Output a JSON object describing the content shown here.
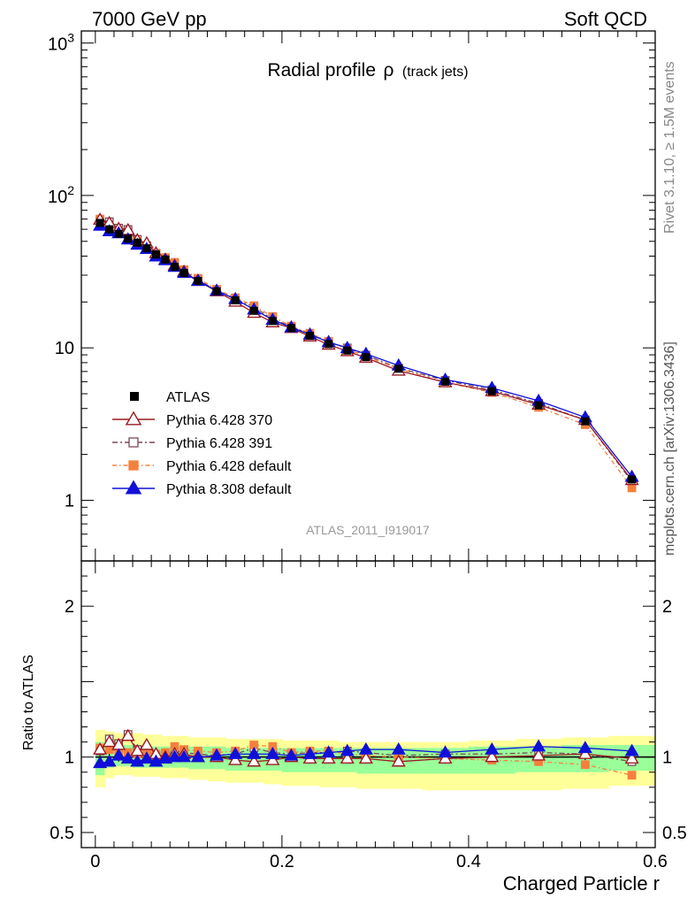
{
  "header": {
    "left": "7000 GeV pp",
    "right": "Soft QCD"
  },
  "title_main": "Radial profile",
  "title_rho": "ρ",
  "title_sub": "(track jets)",
  "side_text": {
    "rivet": "Rivet 3.1.10, ≥ 1.5M events",
    "mcplots": "mcplots.cern.ch [arXiv:1306.3436]"
  },
  "analysis_id": "ATLAS_2011_I919017",
  "ratio_ylabel": "Ratio to ATLAS",
  "xlabel": "Charged Particle r",
  "colors": {
    "atlas": "#000000",
    "p370": "#9b1b24",
    "p391": "#7b4a5a",
    "p6def": "#f5803e",
    "p8def": "#1010d8",
    "band_yellow": "#ffff99",
    "band_green": "#99ff99",
    "axis_grey": "#999999"
  },
  "chart_data": {
    "type": "line",
    "title": "Radial profile ρ (track jets)",
    "xlabel": "Charged Particle r",
    "ylabel": "",
    "main_ylim": [
      0.4,
      1200
    ],
    "main_yscale": "log",
    "ratio_ylim": [
      0.4,
      2.3
    ],
    "xlim": [
      -0.015,
      0.6
    ],
    "x_ticks": [
      {
        "v": 0,
        "label": "0"
      },
      {
        "v": 0.2,
        "label": "0.2"
      },
      {
        "v": 0.4,
        "label": "0.4"
      },
      {
        "v": 0.6,
        "label": "0.6"
      }
    ],
    "main_y_ticks": [
      {
        "v": 1,
        "label": "1"
      },
      {
        "v": 10,
        "label": "10"
      }
    ],
    "main_y_ticks_pow": [
      {
        "v": 100,
        "base": "10",
        "exp": "2"
      },
      {
        "v": 1000,
        "base": "10",
        "exp": "3"
      }
    ],
    "ratio_y_ticks": [
      {
        "v": 0.5,
        "label": "0.5"
      },
      {
        "v": 1,
        "label": "1"
      },
      {
        "v": 2,
        "label": "2"
      }
    ],
    "x": [
      0.005,
      0.015,
      0.025,
      0.035,
      0.045,
      0.055,
      0.065,
      0.075,
      0.085,
      0.095,
      0.11,
      0.13,
      0.15,
      0.17,
      0.19,
      0.21,
      0.23,
      0.25,
      0.27,
      0.29,
      0.325,
      0.375,
      0.425,
      0.475,
      0.525,
      0.575
    ],
    "x_bins": [
      [
        0,
        0.01
      ],
      [
        0.01,
        0.02
      ],
      [
        0.02,
        0.03
      ],
      [
        0.03,
        0.04
      ],
      [
        0.04,
        0.05
      ],
      [
        0.05,
        0.06
      ],
      [
        0.06,
        0.07
      ],
      [
        0.07,
        0.08
      ],
      [
        0.08,
        0.09
      ],
      [
        0.09,
        0.1
      ],
      [
        0.1,
        0.12
      ],
      [
        0.12,
        0.14
      ],
      [
        0.14,
        0.16
      ],
      [
        0.16,
        0.18
      ],
      [
        0.18,
        0.2
      ],
      [
        0.2,
        0.22
      ],
      [
        0.22,
        0.24
      ],
      [
        0.24,
        0.26
      ],
      [
        0.26,
        0.28
      ],
      [
        0.28,
        0.3
      ],
      [
        0.3,
        0.35
      ],
      [
        0.35,
        0.4
      ],
      [
        0.4,
        0.45
      ],
      [
        0.45,
        0.5
      ],
      [
        0.5,
        0.55
      ],
      [
        0.55,
        0.6
      ]
    ],
    "atlas": [
      66,
      60,
      56,
      52,
      49,
      45,
      41,
      38,
      34,
      31,
      27.5,
      23.5,
      20.5,
      17.5,
      15,
      13.5,
      12,
      10.6,
      9.6,
      8.7,
      7.3,
      6.0,
      5.2,
      4.2,
      3.3,
      1.37
    ],
    "band_yellow": [
      [
        0.8,
        1.18
      ],
      [
        0.86,
        1.17
      ],
      [
        0.88,
        1.16
      ],
      [
        0.88,
        1.16
      ],
      [
        0.87,
        1.16
      ],
      [
        0.87,
        1.15
      ],
      [
        0.87,
        1.15
      ],
      [
        0.86,
        1.14
      ],
      [
        0.86,
        1.14
      ],
      [
        0.86,
        1.14
      ],
      [
        0.85,
        1.13
      ],
      [
        0.84,
        1.13
      ],
      [
        0.83,
        1.12
      ],
      [
        0.83,
        1.12
      ],
      [
        0.82,
        1.12
      ],
      [
        0.81,
        1.11
      ],
      [
        0.81,
        1.11
      ],
      [
        0.8,
        1.11
      ],
      [
        0.8,
        1.1
      ],
      [
        0.79,
        1.1
      ],
      [
        0.79,
        1.1
      ],
      [
        0.78,
        1.1
      ],
      [
        0.78,
        1.11
      ],
      [
        0.78,
        1.12
      ],
      [
        0.79,
        1.13
      ],
      [
        0.81,
        1.14
      ]
    ],
    "band_green": [
      [
        0.88,
        1.1
      ],
      [
        0.93,
        1.09
      ],
      [
        0.94,
        1.08
      ],
      [
        0.94,
        1.08
      ],
      [
        0.93,
        1.08
      ],
      [
        0.93,
        1.07
      ],
      [
        0.93,
        1.07
      ],
      [
        0.93,
        1.07
      ],
      [
        0.93,
        1.07
      ],
      [
        0.93,
        1.07
      ],
      [
        0.92,
        1.07
      ],
      [
        0.92,
        1.07
      ],
      [
        0.91,
        1.06
      ],
      [
        0.91,
        1.06
      ],
      [
        0.91,
        1.06
      ],
      [
        0.9,
        1.06
      ],
      [
        0.9,
        1.06
      ],
      [
        0.9,
        1.06
      ],
      [
        0.9,
        1.06
      ],
      [
        0.89,
        1.06
      ],
      [
        0.89,
        1.06
      ],
      [
        0.89,
        1.06
      ],
      [
        0.89,
        1.07
      ],
      [
        0.9,
        1.07
      ],
      [
        0.9,
        1.08
      ],
      [
        0.91,
        1.08
      ]
    ],
    "ratio_errors": [
      0.05,
      0.03,
      0.03,
      0.02,
      0.02,
      0.02,
      0.02,
      0.02,
      0.02,
      0.02,
      0.02,
      0.02,
      0.02,
      0.02,
      0.02,
      0.02,
      0.02,
      0.02,
      0.02,
      0.02,
      0.02,
      0.02,
      0.02,
      0.02,
      0.02,
      0.02
    ],
    "legend_placement": "middle-left",
    "series": [
      {
        "key": "p370",
        "name": "Pythia 6.428 370",
        "marker": "triangle-open",
        "dash": "",
        "ratio": [
          1.05,
          1.1,
          1.08,
          1.14,
          1.04,
          1.08,
          1.02,
          1.0,
          1.02,
          1.02,
          1.0,
          1.0,
          0.98,
          0.97,
          0.98,
          1.0,
          0.99,
          0.99,
          0.99,
          0.99,
          0.97,
          0.99,
          1.0,
          1.01,
          1.02,
          0.99
        ]
      },
      {
        "key": "p391",
        "name": "Pythia 6.428 391",
        "marker": "square-open",
        "dash": "6,3,2,3",
        "ratio": [
          1.04,
          1.12,
          1.09,
          1.15,
          1.05,
          1.04,
          1.01,
          1.01,
          1.04,
          1.03,
          1.02,
          1.01,
          1.02,
          1.06,
          1.03,
          1.02,
          1.03,
          1.03,
          1.04,
          1.03,
          1.01,
          1.02,
          1.02,
          1.03,
          1.02,
          0.97
        ]
      },
      {
        "key": "p6def",
        "name": "Pythia 6.428 default",
        "marker": "square",
        "dash": "5,3,1.5,3",
        "ratio": [
          1.06,
          1.05,
          1.04,
          1.03,
          1.02,
          1.02,
          1.02,
          1.03,
          1.07,
          1.05,
          1.04,
          1.03,
          1.04,
          1.08,
          1.07,
          1.03,
          1.04,
          1.04,
          1.02,
          1.01,
          1.0,
          0.99,
          0.98,
          0.97,
          0.95,
          0.88
        ]
      },
      {
        "key": "p8def",
        "name": "Pythia 8.308 default",
        "marker": "triangle",
        "dash": "",
        "ratio": [
          0.96,
          0.97,
          1.01,
          0.99,
          0.97,
          0.99,
          0.97,
          0.99,
          1.0,
          1.0,
          1.0,
          1.01,
          1.02,
          1.02,
          1.02,
          1.01,
          1.02,
          1.03,
          1.04,
          1.05,
          1.05,
          1.03,
          1.05,
          1.07,
          1.06,
          1.04
        ]
      }
    ]
  }
}
